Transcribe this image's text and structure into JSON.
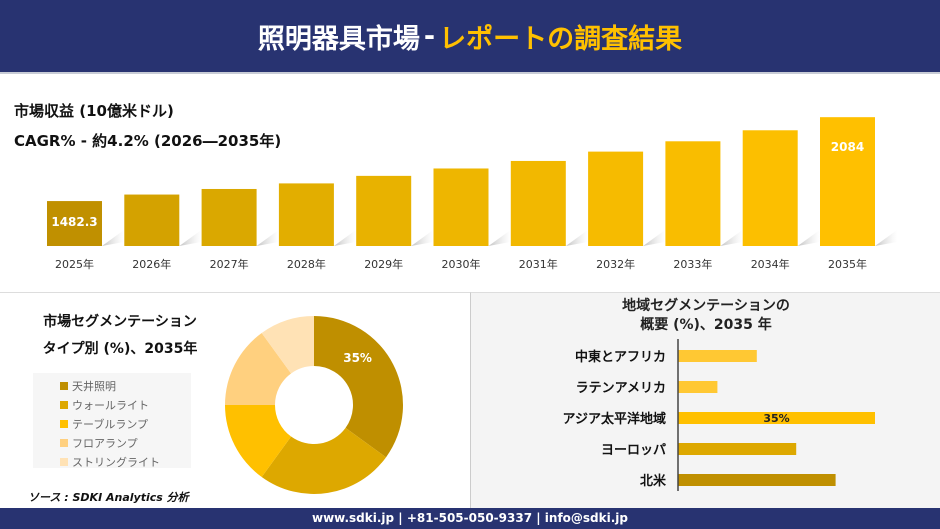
{
  "header": {
    "title_main": "照明器具市場",
    "title_sep": "-",
    "title_accent": "レポートの調査結果"
  },
  "colors": {
    "navy": "#283371",
    "accent": "#FFC000"
  },
  "revenue": {
    "label": "市場収益 (10億米ドル)",
    "cagr": "CAGR% - 約4.2% (2026―2035年)"
  },
  "segment": {
    "title1": "市場セグメンテーション",
    "title2": "タイプ別 (%)、2035年"
  },
  "region": {
    "title1": "地域セグメンテーションの",
    "title2": "概要 (%)、2035 年"
  },
  "source": "ソース : SDKI Analytics 分析",
  "footer": "www.sdki.jp | +81-505-050-9337 | info@sdki.jp",
  "chart_data": [
    {
      "type": "bar",
      "categories": [
        "2025年",
        "2026年",
        "2027年",
        "2028年",
        "2029年",
        "2030年",
        "2031年",
        "2032年",
        "2033年",
        "2034年",
        "2035年"
      ],
      "values": [
        1482.3,
        1529,
        1569,
        1609,
        1663,
        1716,
        1770,
        1837,
        1911,
        1990,
        2084
      ],
      "data_labels": {
        "0": "1482.3",
        "10": "2084"
      },
      "ylim": [
        1160,
        2200
      ],
      "colors": [
        "#C09000",
        "#D4A200",
        "#DAA800",
        "#E2AE00",
        "#E8B200",
        "#EEB600",
        "#F2B800",
        "#F6BB00",
        "#F9BD00",
        "#FCBF00",
        "#FFC000"
      ]
    },
    {
      "type": "pie",
      "donut": true,
      "labels": [
        "天井照明",
        "ウォールライト",
        "テーブルランプ",
        "フロアランプ",
        "ストリングライト"
      ],
      "values": [
        35,
        25,
        15,
        15,
        10
      ],
      "data_labels": {
        "0": "35%"
      },
      "colors": [
        "#BF8F00",
        "#DDA800",
        "#FFC000",
        "#FFD07F",
        "#FFE2B5"
      ],
      "legend": "left"
    },
    {
      "type": "bar",
      "orientation": "horizontal",
      "categories": [
        "中東とアフリカ",
        "ラテンアメリカ",
        "アジア太平洋地域",
        "ヨーロッパ",
        "北米"
      ],
      "values": [
        14,
        7,
        35,
        21,
        28
      ],
      "data_labels": {
        "2": "35%"
      },
      "colors": [
        "#FFC833",
        "#FFC833",
        "#FFC000",
        "#DDA800",
        "#BF8F00"
      ]
    }
  ]
}
